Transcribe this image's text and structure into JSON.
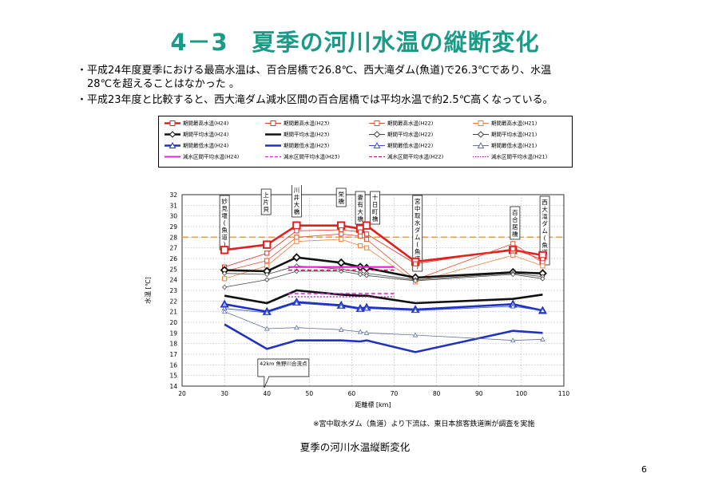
{
  "slide": {
    "title": "4－3　夏季の河川水温の縦断変化",
    "bullets": [
      "・平成24年度夏季における最高水温は、百合居橋で26.8℃、西大滝ダム(魚道)で26.3℃であり、水温",
      "　28℃を超えることはなかった 。",
      "・平成23年度と比較すると、西大滝ダム減水区間の百合居橋では平均水温で約2.5℃高くなっている。"
    ],
    "note": "※宮中取水ダム（魚道）より下流は、東日本旅客鉄道㈱が調査を実施",
    "caption": "夏季の河川水温縦断変化",
    "page_number": "6"
  },
  "chart_data": {
    "type": "line",
    "xlabel": "距離標 [km]",
    "ylabel": "水温 [℃]",
    "xlim": [
      20,
      110
    ],
    "ylim": [
      14,
      32
    ],
    "xticks": [
      "20",
      "30",
      "40",
      "50",
      "60",
      "70",
      "80",
      "90",
      "100",
      "110"
    ],
    "yticks": [
      "14",
      "15",
      "16",
      "17",
      "18",
      "19",
      "20",
      "21",
      "22",
      "23",
      "24",
      "25",
      "26",
      "27",
      "28",
      "29",
      "30",
      "31",
      "32"
    ],
    "grid": true,
    "threshold": {
      "value": 28,
      "color": "#f0a030"
    },
    "locations": [
      {
        "label": "妙見堰(魚道)",
        "x": 30
      },
      {
        "label": "上片貝",
        "x": 39.8
      },
      {
        "label": "川井大橋",
        "x": 47
      },
      {
        "label": "栄橋",
        "x": 57.5
      },
      {
        "label": "妻有大橋",
        "x": 62
      },
      {
        "label": "十日町橋",
        "x": 65.5
      },
      {
        "label": "宮中取水ダム(魚道)",
        "x": 75.5
      },
      {
        "label": "百合居橋",
        "x": 98.5
      },
      {
        "label": "西大滝ダム(魚道)",
        "x": 105.5
      }
    ],
    "annotation": "42km 魚野川合流点",
    "series": [
      {
        "name": "期間最高水温(H24)",
        "color": "#e02020",
        "style": "thick",
        "marker": "square",
        "x": [
          30,
          40,
          47,
          57.5,
          62,
          63.5,
          75,
          98,
          105
        ],
        "y": [
          26.8,
          27.3,
          29.1,
          29.1,
          28.8,
          29.1,
          25.7,
          26.8,
          26.3
        ]
      },
      {
        "name": "期間最高水温(H23)",
        "color": "#e03020",
        "style": "thin",
        "marker": "square",
        "x": [
          30,
          40,
          47,
          57.5,
          62,
          63.5,
          75,
          98,
          105
        ],
        "y": [
          25.2,
          26.5,
          28.6,
          28.7,
          28.5,
          28.3,
          25.5,
          26.9,
          25.9
        ]
      },
      {
        "name": "期間最高水温(H22)",
        "color": "#e05030",
        "style": "thin",
        "marker": "square",
        "x": [
          30,
          40,
          47,
          57.5,
          62,
          63.5,
          75,
          98,
          105
        ],
        "y": [
          24.8,
          25.8,
          28.0,
          28.3,
          28.1,
          27.8,
          24.0,
          27.4,
          25.6
        ]
      },
      {
        "name": "期間最高水温(H21)",
        "color": "#f08040",
        "style": "thin",
        "marker": "square",
        "x": [
          30,
          40,
          47,
          57.5,
          62,
          63.5,
          75,
          98,
          105
        ],
        "y": [
          24.1,
          25.3,
          27.6,
          27.8,
          27.2,
          27.0,
          23.8,
          26.3,
          25.3
        ]
      },
      {
        "name": "期間平均水温(H24)",
        "color": "#111111",
        "style": "thick",
        "marker": "diamond",
        "x": [
          30,
          40,
          47,
          57.5,
          62,
          63.5,
          75,
          98,
          105
        ],
        "y": [
          24.9,
          24.8,
          26.1,
          25.6,
          25.2,
          25.1,
          24.2,
          24.7,
          24.6
        ]
      },
      {
        "name": "期間平均水温(H23)",
        "color": "#111111",
        "style": "thick",
        "marker": "none",
        "x": [
          30,
          40,
          47,
          57.5,
          62,
          63.5,
          75,
          98,
          105
        ],
        "y": [
          22.5,
          21.8,
          23.0,
          22.6,
          22.5,
          22.5,
          21.8,
          22.2,
          22.6
        ]
      },
      {
        "name": "期間平均水温(H22)",
        "color": "#444444",
        "style": "thin",
        "marker": "diamond",
        "x": [
          30,
          40,
          47,
          57.5,
          62,
          63.5,
          75,
          98,
          105
        ],
        "y": [
          24.6,
          24.5,
          25.3,
          25.0,
          24.7,
          24.6,
          24.0,
          24.6,
          24.3
        ]
      },
      {
        "name": "期間平均水温(H21)",
        "color": "#444444",
        "style": "thin",
        "marker": "diamond",
        "x": [
          30,
          40,
          47,
          57.5,
          62,
          63.5,
          75,
          98,
          105
        ],
        "y": [
          23.3,
          24.0,
          24.8,
          24.8,
          24.5,
          24.4,
          23.9,
          24.5,
          24.1
        ]
      },
      {
        "name": "期間最低水温(H24)",
        "color": "#2030c0",
        "style": "thick",
        "marker": "triangle",
        "x": [
          30,
          40,
          47,
          57.5,
          62,
          63.5,
          75,
          98,
          105
        ],
        "y": [
          21.7,
          21.0,
          21.9,
          21.6,
          21.3,
          21.4,
          21.2,
          21.7,
          21.1
        ]
      },
      {
        "name": "期間最低水温(H23)",
        "color": "#2030c0",
        "style": "thick",
        "marker": "none",
        "x": [
          30,
          40,
          47,
          57.5,
          62,
          63.5,
          75,
          98,
          105
        ],
        "y": [
          19.8,
          17.5,
          18.3,
          18.3,
          18.2,
          18.3,
          17.2,
          19.2,
          19.0
        ]
      },
      {
        "name": "期間最低水温(H22)",
        "color": "#3050d0",
        "style": "thin",
        "marker": "triangle",
        "x": [
          30,
          40,
          47,
          57.5,
          62,
          63.5,
          75,
          98,
          105
        ],
        "y": [
          21.3,
          20.9,
          21.8,
          21.5,
          21.2,
          21.3,
          21.1,
          21.5,
          21.1
        ]
      },
      {
        "name": "期間最低水温(H21)",
        "color": "#6070a0",
        "style": "thin",
        "marker": "triangle",
        "x": [
          30,
          40,
          47,
          57.5,
          62,
          63.5,
          75,
          98,
          105
        ],
        "y": [
          21.0,
          19.4,
          19.5,
          19.3,
          19.1,
          19.0,
          18.8,
          18.3,
          18.4
        ]
      },
      {
        "name": "減水区間平均水温(H24)",
        "color": "#e020e0",
        "style": "solid",
        "marker": "none",
        "x": [
          45,
          70
        ],
        "y": [
          25.2,
          25.2
        ]
      },
      {
        "name": "減水区間平均水温(H23)",
        "color": "#d020d0",
        "style": "dash",
        "marker": "none",
        "x": [
          45,
          70
        ],
        "y": [
          22.7,
          22.7
        ]
      },
      {
        "name": "減水区間平均水温(H22)",
        "color": "#c01060",
        "style": "dash",
        "marker": "none",
        "x": [
          45,
          70
        ],
        "y": [
          24.9,
          24.9
        ]
      },
      {
        "name": "減水区間平均水温(H21)",
        "color": "#a010a0",
        "style": "dot",
        "marker": "none",
        "x": [
          45,
          70
        ],
        "y": [
          22.4,
          22.4
        ]
      }
    ]
  }
}
